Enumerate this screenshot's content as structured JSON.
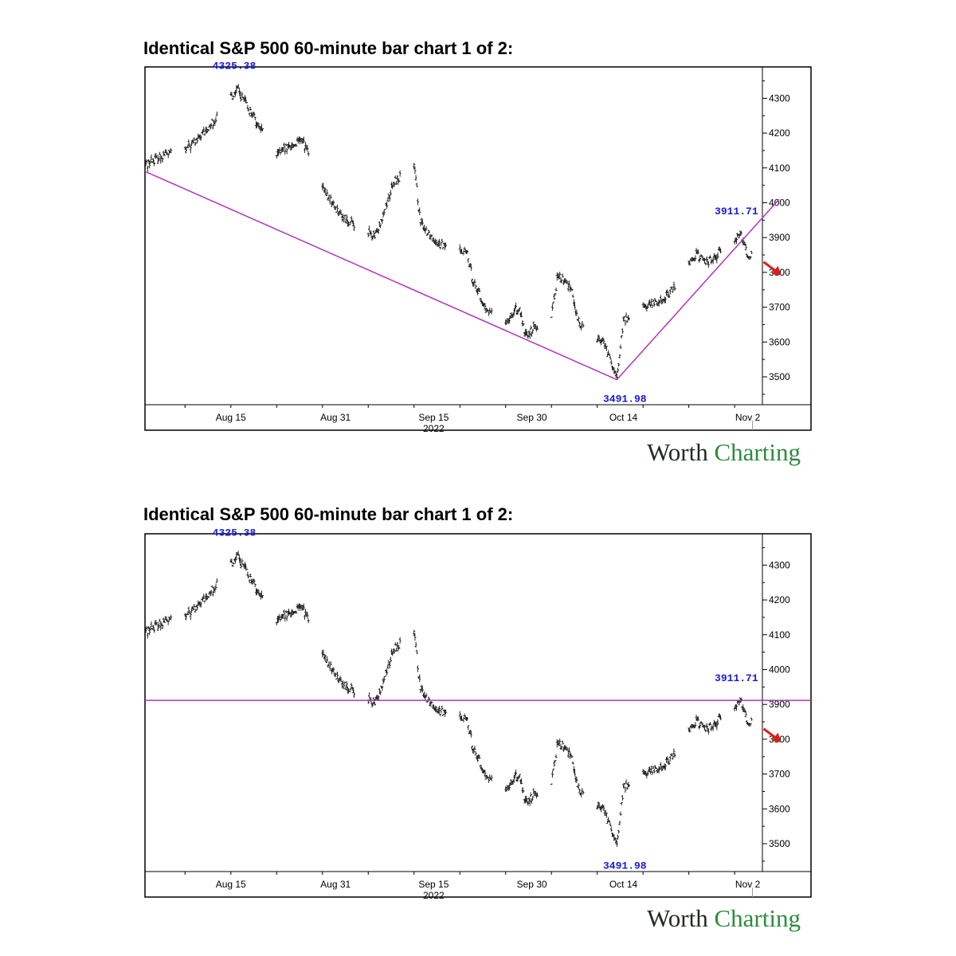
{
  "charts": [
    {
      "title": "Identical S&P 500 60-minute bar chart 1 of 2:",
      "brand": {
        "part1": "Worth",
        "part2": "Charting"
      },
      "line_style": "v_trendline",
      "chart_data": {
        "type": "ohlc",
        "title": "Identical S&P 500 60-minute bar chart 1 of 2:",
        "ylim": [
          3420,
          4390
        ],
        "yticks": [
          3500,
          3600,
          3700,
          3800,
          3900,
          4000,
          4100,
          4200,
          4300
        ],
        "x_tick_labels": [
          "Aug 15",
          "Aug 31",
          "Sep 15",
          "Sep 30",
          "Oct 14",
          "Nov 2"
        ],
        "x_year_label": "2022",
        "annotations": [
          "4325.38",
          "3491.98",
          "3911.71"
        ],
        "anchors": [
          {
            "date": "Aug 2",
            "value": 4110
          },
          {
            "date": "Aug 5",
            "value": 4140
          },
          {
            "date": "Aug 8",
            "value": 4150
          },
          {
            "date": "Aug 11",
            "value": 4200
          },
          {
            "date": "Aug 16",
            "value": 4325.38
          },
          {
            "date": "Aug 19",
            "value": 4230
          },
          {
            "date": "Aug 22",
            "value": 4140
          },
          {
            "date": "Aug 26",
            "value": 4180
          },
          {
            "date": "Aug 29",
            "value": 4040
          },
          {
            "date": "Sep 1",
            "value": 3960
          },
          {
            "date": "Sep 6",
            "value": 3900
          },
          {
            "date": "Sep 9",
            "value": 4060
          },
          {
            "date": "Sep 12",
            "value": 4110
          },
          {
            "date": "Sep 13",
            "value": 3940
          },
          {
            "date": "Sep 16",
            "value": 3880
          },
          {
            "date": "Sep 20",
            "value": 3860
          },
          {
            "date": "Sep 21",
            "value": 3780
          },
          {
            "date": "Sep 23",
            "value": 3690
          },
          {
            "date": "Sep 26",
            "value": 3660
          },
          {
            "date": "Sep 28",
            "value": 3700
          },
          {
            "date": "Sep 29",
            "value": 3620
          },
          {
            "date": "Oct 3",
            "value": 3680
          },
          {
            "date": "Oct 4",
            "value": 3790
          },
          {
            "date": "Oct 6",
            "value": 3760
          },
          {
            "date": "Oct 7",
            "value": 3660
          },
          {
            "date": "Oct 11",
            "value": 3600
          },
          {
            "date": "Oct 13",
            "value": 3491.98
          },
          {
            "date": "Oct 14",
            "value": 3660
          },
          {
            "date": "Oct 17",
            "value": 3700
          },
          {
            "date": "Oct 20",
            "value": 3720
          },
          {
            "date": "Oct 21",
            "value": 3740
          },
          {
            "date": "Oct 25",
            "value": 3850
          },
          {
            "date": "Oct 27",
            "value": 3830
          },
          {
            "date": "Nov 1",
            "value": 3911.71
          },
          {
            "date": "Nov 2",
            "value": 3850
          }
        ]
      }
    },
    {
      "title": "Identical S&P 500 60-minute bar chart 1 of 2:",
      "brand": {
        "part1": "Worth",
        "part2": "Charting"
      },
      "line_style": "horizontal",
      "chart_data": {
        "type": "ohlc",
        "title": "Identical S&P 500 60-minute bar chart 1 of 2:",
        "ylim": [
          3420,
          4390
        ],
        "yticks": [
          3500,
          3600,
          3700,
          3800,
          3900,
          4000,
          4100,
          4200,
          4300
        ],
        "x_tick_labels": [
          "Aug 15",
          "Aug 31",
          "Sep 15",
          "Sep 30",
          "Oct 14",
          "Nov 2"
        ],
        "x_year_label": "2022",
        "annotations": [
          "4325.38",
          "3491.98",
          "3911.71"
        ],
        "anchors": "same as chart 1",
        "horizontal_line_value": 3911.71
      }
    }
  ],
  "colors": {
    "bars": "#111111",
    "trendline": "#b234b8",
    "annotation": "#1a1adb",
    "arrow": "#e01b1b",
    "axis": "#000000",
    "brand_dark": "#1f2b22",
    "brand_green": "#2e8b3e"
  }
}
